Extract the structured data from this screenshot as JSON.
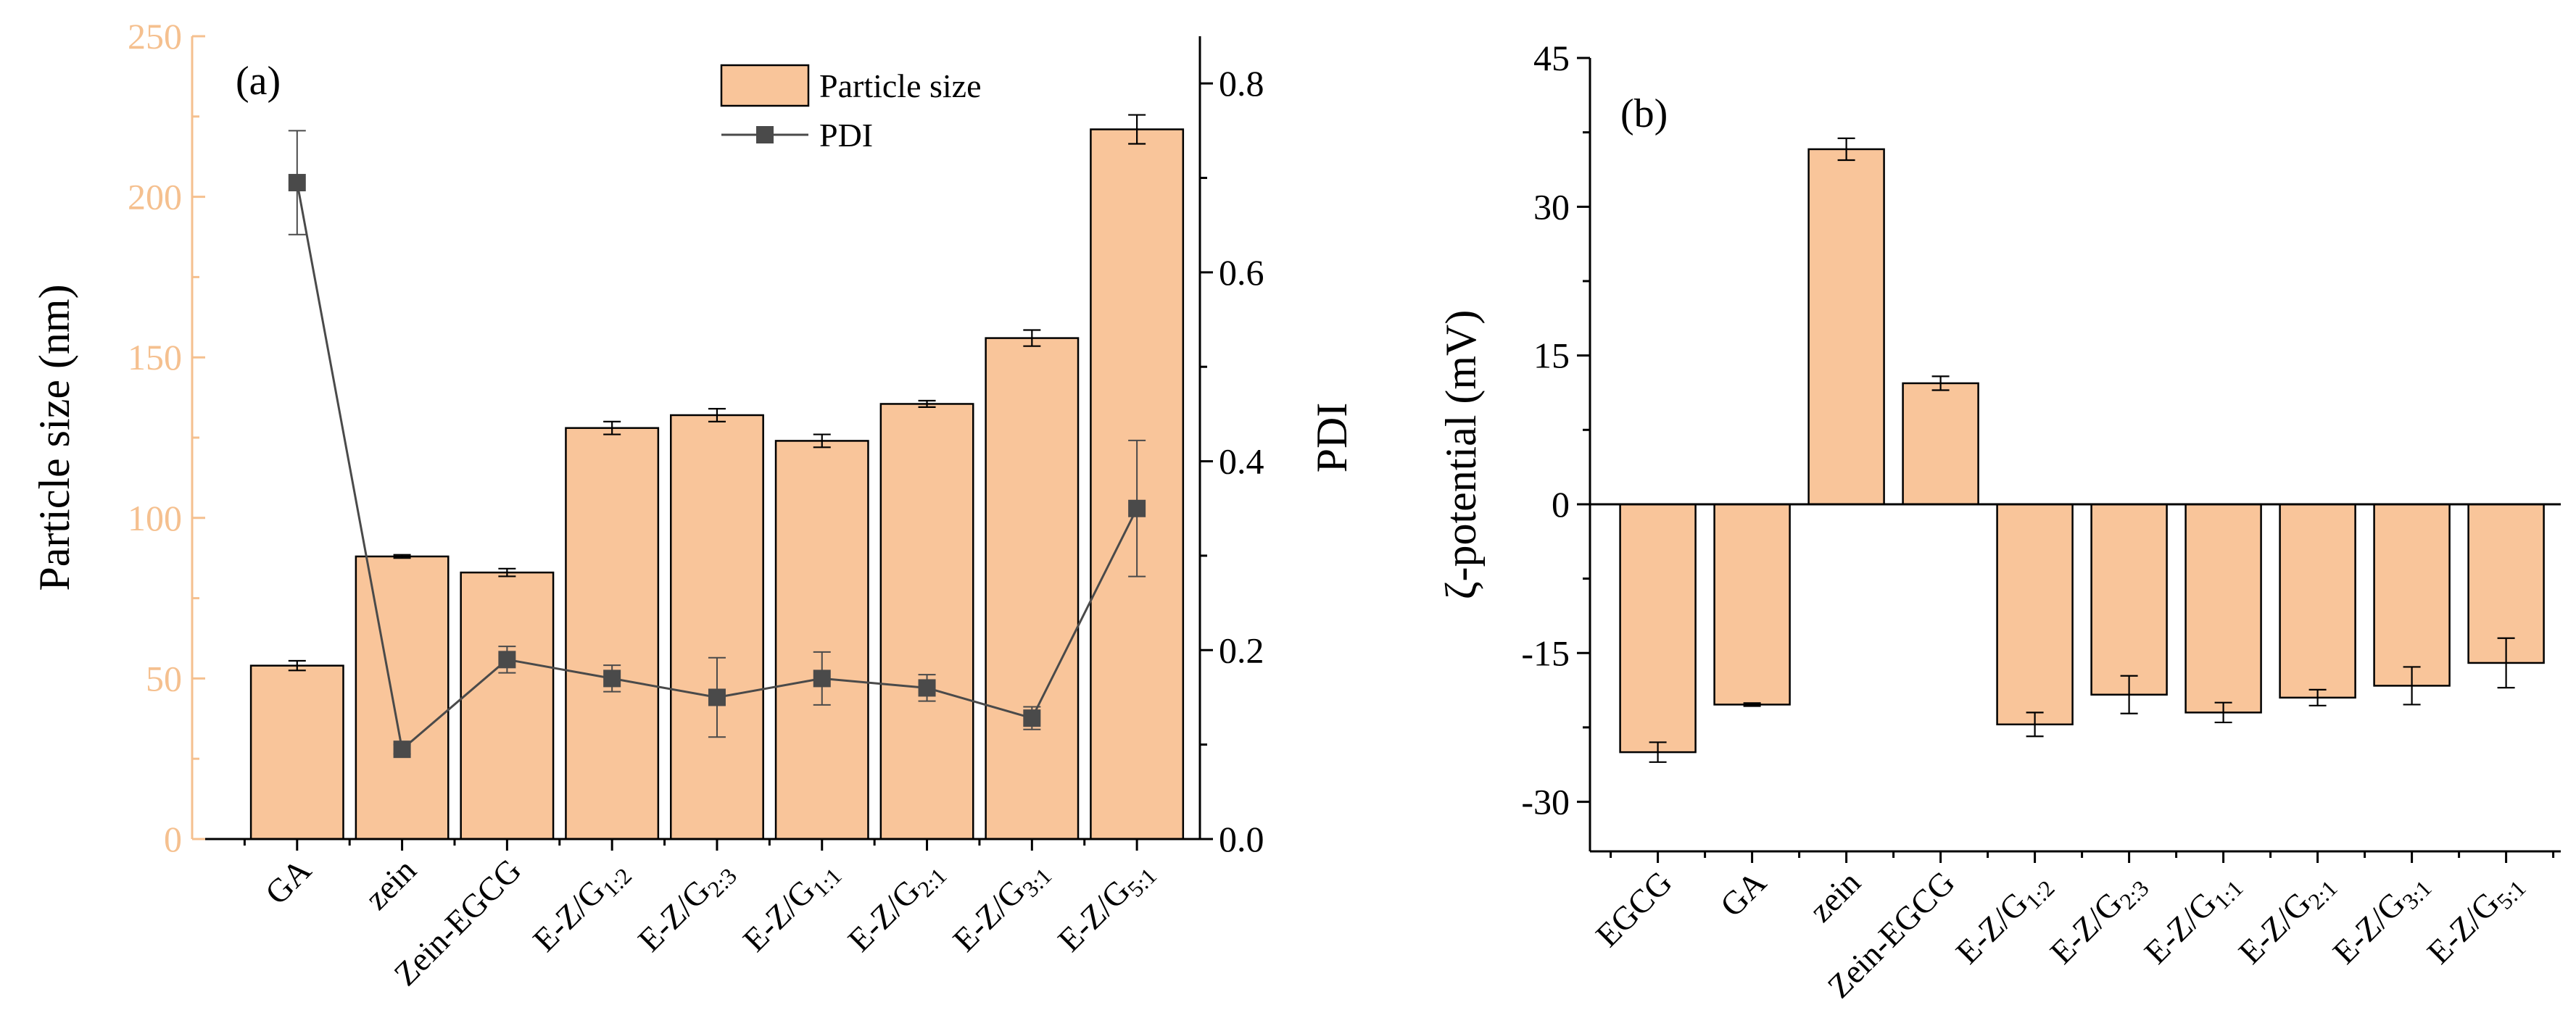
{
  "chart_data": [
    {
      "type": "bar",
      "panel_label": "(a)",
      "title": "",
      "categories": [
        {
          "base": "GA",
          "sub": ""
        },
        {
          "base": "zein",
          "sub": ""
        },
        {
          "base": "Zein-EGCG",
          "sub": ""
        },
        {
          "base": "E-Z/G",
          "sub": "1:2"
        },
        {
          "base": "E-Z/G",
          "sub": "2:3"
        },
        {
          "base": "E-Z/G",
          "sub": "1:1"
        },
        {
          "base": "E-Z/G",
          "sub": "2:1"
        },
        {
          "base": "E-Z/G",
          "sub": "3:1"
        },
        {
          "base": "E-Z/G",
          "sub": "5:1"
        }
      ],
      "ylabel": "Particle size (nm)",
      "ylim": [
        0,
        250
      ],
      "yticks": [
        0,
        50,
        100,
        150,
        200,
        250
      ],
      "y2label": "PDI",
      "y2lim": [
        0,
        0.85
      ],
      "y2ticks": [
        "0.0",
        "0.2",
        "0.4",
        "0.6",
        "0.8"
      ],
      "series": [
        {
          "name": "Particle size",
          "kind": "bar",
          "axis": "left",
          "values": [
            54,
            88,
            83,
            128,
            132,
            124,
            135.5,
            156,
            221
          ],
          "errors": [
            1.5,
            0.5,
            1.2,
            2.0,
            2.0,
            2.0,
            1.0,
            2.5,
            4.5
          ]
        },
        {
          "name": "PDI",
          "kind": "line",
          "axis": "right",
          "values": [
            0.695,
            0.095,
            0.19,
            0.17,
            0.15,
            0.17,
            0.16,
            0.128,
            0.35
          ],
          "errors": [
            0.055,
            0.005,
            0.014,
            0.014,
            0.042,
            0.028,
            0.014,
            0.012,
            0.072
          ]
        }
      ],
      "legend": {
        "position": "top-right",
        "items": [
          "Particle size",
          "PDI"
        ]
      }
    },
    {
      "type": "bar",
      "panel_label": "(b)",
      "title": "",
      "categories": [
        {
          "base": "EGCG",
          "sub": ""
        },
        {
          "base": "GA",
          "sub": ""
        },
        {
          "base": "zein",
          "sub": ""
        },
        {
          "base": "Zein-EGCG",
          "sub": ""
        },
        {
          "base": "E-Z/G",
          "sub": "1:2"
        },
        {
          "base": "E-Z/G",
          "sub": "2:3"
        },
        {
          "base": "E-Z/G",
          "sub": "1:1"
        },
        {
          "base": "E-Z/G",
          "sub": "2:1"
        },
        {
          "base": "E-Z/G",
          "sub": "3:1"
        },
        {
          "base": "E-Z/G",
          "sub": "5:1"
        }
      ],
      "ylabel": "ζ-potential (mV)",
      "ylim": [
        -35,
        45
      ],
      "yticks": [
        -30,
        -15,
        0,
        15,
        30,
        45
      ],
      "series": [
        {
          "name": "ζ-potential",
          "kind": "bar",
          "values": [
            -25.0,
            -20.2,
            35.8,
            12.2,
            -22.2,
            -19.2,
            -21.0,
            -19.5,
            -18.3,
            -16.0
          ],
          "errors": [
            1.0,
            0.15,
            1.1,
            0.7,
            1.2,
            1.9,
            1.0,
            0.8,
            1.9,
            2.5
          ]
        }
      ]
    }
  ]
}
